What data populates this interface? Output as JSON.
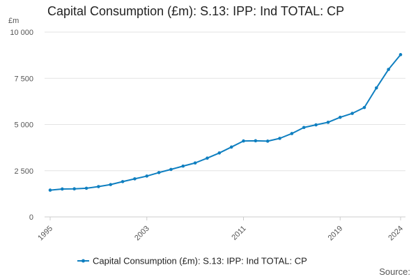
{
  "chart_data": {
    "type": "line",
    "title": "Capital Consumption (£m): S.13: IPP: Ind TOTAL: CP",
    "ylabel": "£m",
    "xlabel": "",
    "ylim": [
      0,
      10000
    ],
    "yticks": [
      0,
      2500,
      5000,
      7500,
      10000
    ],
    "ytick_labels": [
      "0",
      "2 500",
      "5 000",
      "7 500",
      "10 000"
    ],
    "xlim": [
      1995,
      2024
    ],
    "xticks": [
      1995,
      2003,
      2011,
      2019,
      2024
    ],
    "xtick_labels": [
      "1995",
      "2003",
      "2011",
      "2019",
      "2024"
    ],
    "grid": true,
    "legend_position": "bottom",
    "color": "#0f7fc0",
    "series": [
      {
        "name": "Capital Consumption (£m): S.13: IPP: Ind TOTAL: CP",
        "x": [
          1995,
          1996,
          1997,
          1998,
          1999,
          2000,
          2001,
          2002,
          2003,
          2004,
          2005,
          2006,
          2007,
          2008,
          2009,
          2010,
          2011,
          2012,
          2013,
          2014,
          2015,
          2016,
          2017,
          2018,
          2019,
          2020,
          2021,
          2022,
          2023,
          2024
        ],
        "values": [
          1450,
          1510,
          1520,
          1550,
          1640,
          1750,
          1910,
          2060,
          2210,
          2400,
          2570,
          2750,
          2920,
          3180,
          3460,
          3780,
          4110,
          4120,
          4100,
          4250,
          4510,
          4840,
          4980,
          5120,
          5390,
          5600,
          5920,
          6980,
          7980,
          8780
        ]
      }
    ]
  },
  "footer": {
    "source_label": "Source:"
  }
}
